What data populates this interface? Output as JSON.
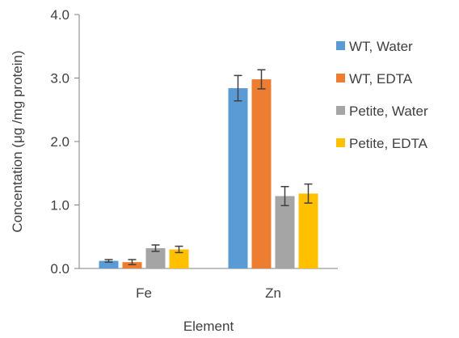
{
  "chart_data": {
    "type": "bar",
    "xlabel": "Element",
    "ylabel": "Concentation (μg /mg protein)",
    "categories": [
      "Fe",
      "Zn"
    ],
    "ylim": [
      0,
      4
    ],
    "yticks": [
      "0.0",
      "1.0",
      "2.0",
      "3.0",
      "4.0"
    ],
    "ytick_values": [
      0,
      1,
      2,
      3,
      4
    ],
    "grid": false,
    "legend_position": "right",
    "series": [
      {
        "name": "WT, Water",
        "color": "#5B9BD5",
        "values": [
          0.12,
          2.84
        ],
        "errors": [
          0.02,
          0.2
        ]
      },
      {
        "name": "WT, EDTA",
        "color": "#ED7D31",
        "values": [
          0.1,
          2.98
        ],
        "errors": [
          0.04,
          0.15
        ]
      },
      {
        "name": "Petite, Water",
        "color": "#A5A5A5",
        "values": [
          0.32,
          1.14
        ],
        "errors": [
          0.05,
          0.15
        ]
      },
      {
        "name": "Petite, EDTA",
        "color": "#FFC000",
        "values": [
          0.3,
          1.18
        ],
        "errors": [
          0.05,
          0.15
        ]
      }
    ]
  }
}
